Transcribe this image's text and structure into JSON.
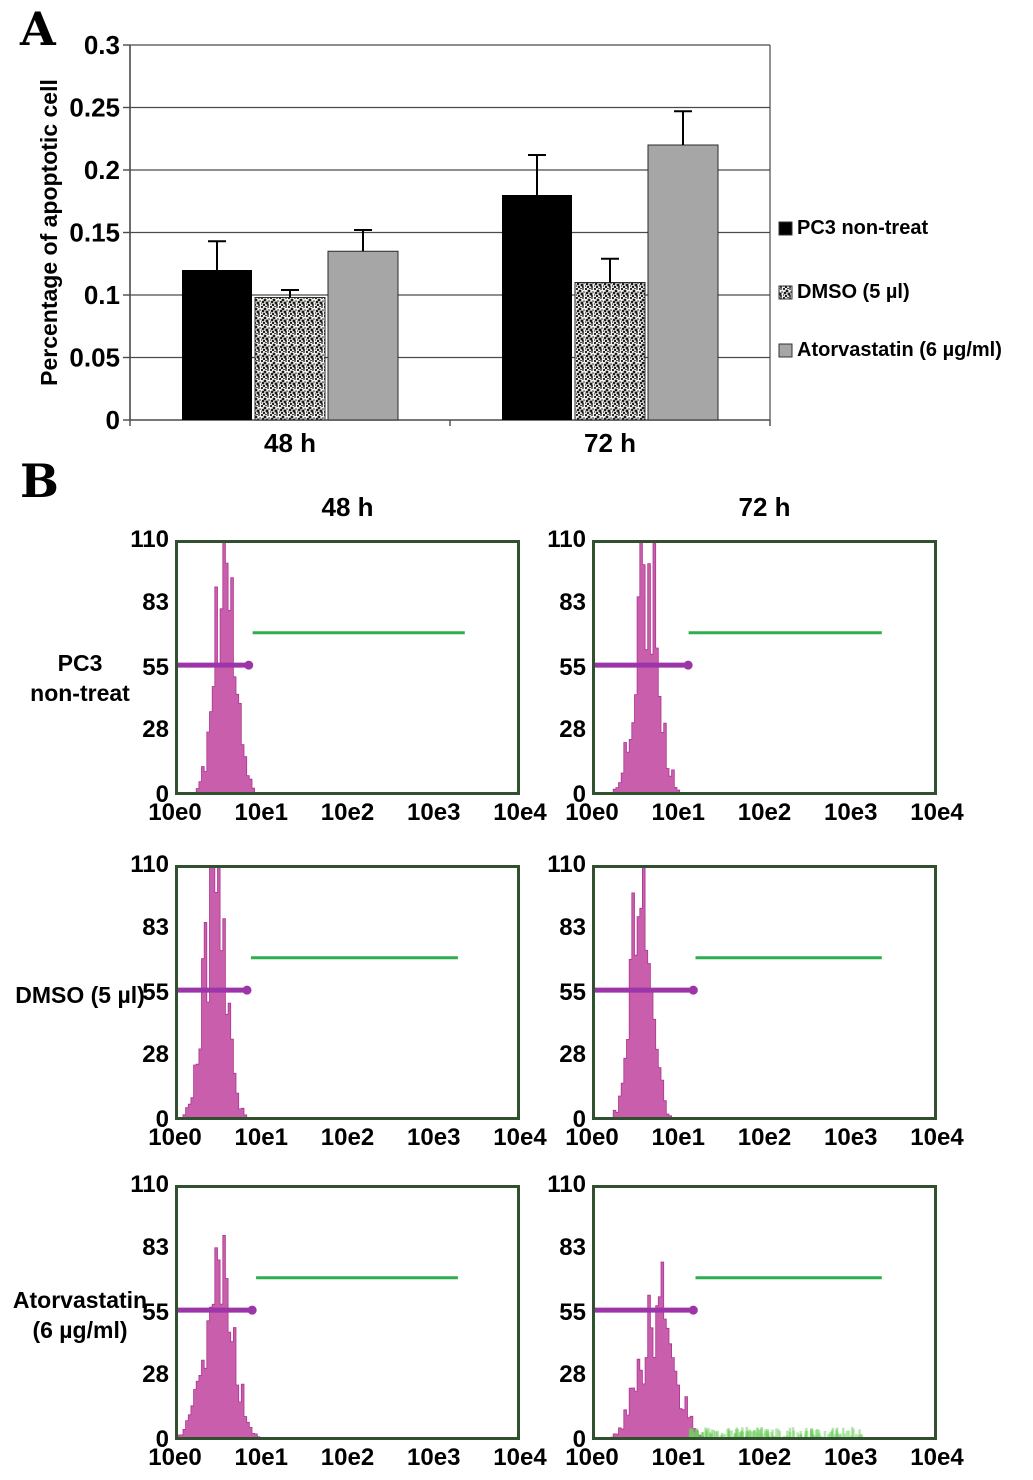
{
  "figure": {
    "panel_a_label": "A",
    "panel_b_label": "B"
  },
  "chart_data": [
    {
      "type": "bar",
      "panel": "A",
      "title": "",
      "xlabel": "",
      "ylabel": "Percentage of apoptotic cell",
      "categories": [
        "48 h",
        "72 h"
      ],
      "series": [
        {
          "name": "PC3 non-treat",
          "values": [
            0.12,
            0.18
          ],
          "errors": [
            0.023,
            0.032
          ],
          "fill": "#000000",
          "pattern": "solid"
        },
        {
          "name": "DMSO (5 µl)",
          "values": [
            0.098,
            0.11
          ],
          "errors": [
            0.006,
            0.019
          ],
          "fill": "#f4f2ee",
          "pattern": "speckle"
        },
        {
          "name": "Atorvastatin (6 µg/ml)",
          "values": [
            0.135,
            0.22
          ],
          "errors": [
            0.017,
            0.027
          ],
          "fill": "#a6a6a6",
          "pattern": "solid"
        }
      ],
      "ylim": [
        0,
        0.3
      ],
      "yticks": [
        0,
        0.05,
        0.1,
        0.15,
        0.2,
        0.25,
        0.3
      ],
      "grid": true,
      "legend_position": "right"
    },
    {
      "type": "histogram-grid",
      "panel": "B",
      "columns": [
        "48 h",
        "72 h"
      ],
      "rows": [
        {
          "label_lines": [
            "PC3",
            "non-treat"
          ]
        },
        {
          "label_lines": [
            "DMSO (5 µl)"
          ]
        },
        {
          "label_lines": [
            "Atorvastatin",
            "(6 µg/ml)"
          ]
        }
      ],
      "yticks": [
        0,
        28,
        55,
        83,
        110
      ],
      "xticks": [
        "10e0",
        "10e1",
        "10e2",
        "10e3",
        "10e4"
      ],
      "ymax": 110,
      "plots": [
        {
          "row": 0,
          "col": 0,
          "peak_center": 0.145,
          "peak_sigma": 0.03,
          "peak_max": 107,
          "purple_gate": {
            "y": 56,
            "x1": 0.0,
            "x2": 0.205
          },
          "green_gate": {
            "y": 70,
            "x1": 0.225,
            "x2": 0.84
          },
          "debris_noise": false,
          "seed": 11
        },
        {
          "row": 0,
          "col": 1,
          "peak_center": 0.16,
          "peak_sigma": 0.034,
          "peak_max": 104,
          "purple_gate": {
            "y": 56,
            "x1": 0.0,
            "x2": 0.27
          },
          "green_gate": {
            "y": 70,
            "x1": 0.28,
            "x2": 0.84
          },
          "debris_noise": false,
          "seed": 22
        },
        {
          "row": 1,
          "col": 0,
          "peak_center": 0.115,
          "peak_sigma": 0.032,
          "peak_max": 108,
          "purple_gate": {
            "y": 56,
            "x1": 0.0,
            "x2": 0.2
          },
          "green_gate": {
            "y": 70,
            "x1": 0.22,
            "x2": 0.82
          },
          "debris_noise": false,
          "seed": 33
        },
        {
          "row": 1,
          "col": 1,
          "peak_center": 0.145,
          "peak_sigma": 0.03,
          "peak_max": 105,
          "purple_gate": {
            "y": 56,
            "x1": 0.0,
            "x2": 0.285
          },
          "green_gate": {
            "y": 70,
            "x1": 0.3,
            "x2": 0.84
          },
          "debris_noise": false,
          "seed": 44
        },
        {
          "row": 2,
          "col": 0,
          "peak_center": 0.125,
          "peak_sigma": 0.042,
          "peak_max": 80,
          "purple_gate": {
            "y": 56,
            "x1": 0.0,
            "x2": 0.215
          },
          "green_gate": {
            "y": 70,
            "x1": 0.235,
            "x2": 0.82
          },
          "debris_noise": false,
          "seed": 55
        },
        {
          "row": 2,
          "col": 1,
          "peak_center": 0.19,
          "peak_sigma": 0.05,
          "peak_max": 62,
          "purple_gate": {
            "y": 56,
            "x1": 0.0,
            "x2": 0.285
          },
          "green_gate": {
            "y": 70,
            "x1": 0.3,
            "x2": 0.84
          },
          "debris_noise": true,
          "noise_range": [
            0.27,
            0.78
          ],
          "seed": 66
        }
      ]
    }
  ],
  "colors": {
    "bar_black": "#000000",
    "bar_gray": "#a6a6a6",
    "speckle_dot": "#1a1a1a",
    "axis": "#4a4a4a",
    "histogram_fill": "#c655a9",
    "histogram_edge": "#ad3590",
    "purple_marker": "#9c35a8",
    "green_marker": "#2fae4e",
    "plot_border": "#30502f",
    "debris_green": "#6ecf5e"
  }
}
